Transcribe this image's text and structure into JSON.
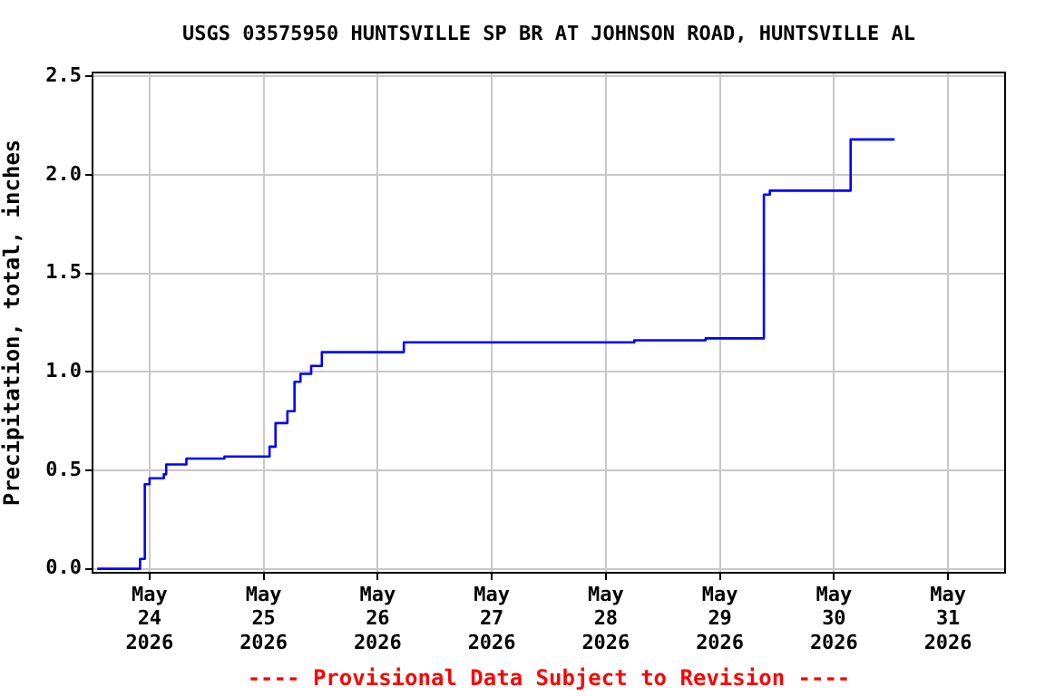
{
  "chart_data": {
    "type": "step",
    "title": "USGS 03575950 HUNTSVILLE SP BR AT JOHNSON ROAD, HUNTSVILLE AL",
    "ylabel": "Precipitation, total, inches",
    "annotations": [
      "---- Provisional Data Subject to Revision ----"
    ],
    "x": [
      "2026-05-23T13:00",
      "2026-05-23T21:00",
      "2026-05-23T22:00",
      "2026-05-23T23:00",
      "2026-05-24T00:00",
      "2026-05-24T03:00",
      "2026-05-24T03:30",
      "2026-05-24T07:45",
      "2026-05-24T15:45",
      "2026-05-25T01:15",
      "2026-05-25T02:30",
      "2026-05-25T05:00",
      "2026-05-25T06:30",
      "2026-05-25T07:45",
      "2026-05-25T10:00",
      "2026-05-25T12:15",
      "2026-05-26T05:30",
      "2026-05-28T06:00",
      "2026-05-28T21:00",
      "2026-05-29T09:15",
      "2026-05-29T10:30",
      "2026-05-30T03:30",
      "2026-05-30T12:45"
    ],
    "series": [
      {
        "color": "#0000ff",
        "values": [
          0,
          0,
          0.05,
          0.43,
          0.46,
          0.48,
          0.53,
          0.56,
          0.57,
          0.62,
          0.74,
          0.8,
          0.95,
          0.99,
          1.03,
          1.1,
          1.15,
          1.16,
          1.17,
          1.9,
          1.92,
          2.18,
          2.18
        ]
      }
    ],
    "xlim": [
      "2026-05-23T12:00",
      "2026-05-31T12:00"
    ],
    "xticks": [
      {
        "value": "2026-05-24",
        "label": "May 24 2026"
      },
      {
        "value": "2026-05-25",
        "label": "May 25 2026"
      },
      {
        "value": "2026-05-26",
        "label": "May 26 2026"
      },
      {
        "value": "2026-05-27",
        "label": "May 27 2026"
      },
      {
        "value": "2026-05-28",
        "label": "May 28 2026"
      },
      {
        "value": "2026-05-29",
        "label": "May 29 2026"
      },
      {
        "value": "2026-05-30",
        "label": "May 30 2026"
      },
      {
        "value": "2026-05-31",
        "label": "May 31 2026"
      }
    ],
    "ylim": [
      -0.02,
      2.52
    ],
    "yticks": [
      {
        "value": 0,
        "label": "0.0"
      },
      {
        "value": 0.5,
        "label": "0.5"
      },
      {
        "value": 1,
        "label": "1.0"
      },
      {
        "value": 1.5,
        "label": "1.5"
      },
      {
        "value": 2,
        "label": "2.0"
      },
      {
        "value": 2.5,
        "label": "2.5"
      }
    ],
    "grid": true,
    "legend": false,
    "marker": "none",
    "line_style": "solid"
  }
}
